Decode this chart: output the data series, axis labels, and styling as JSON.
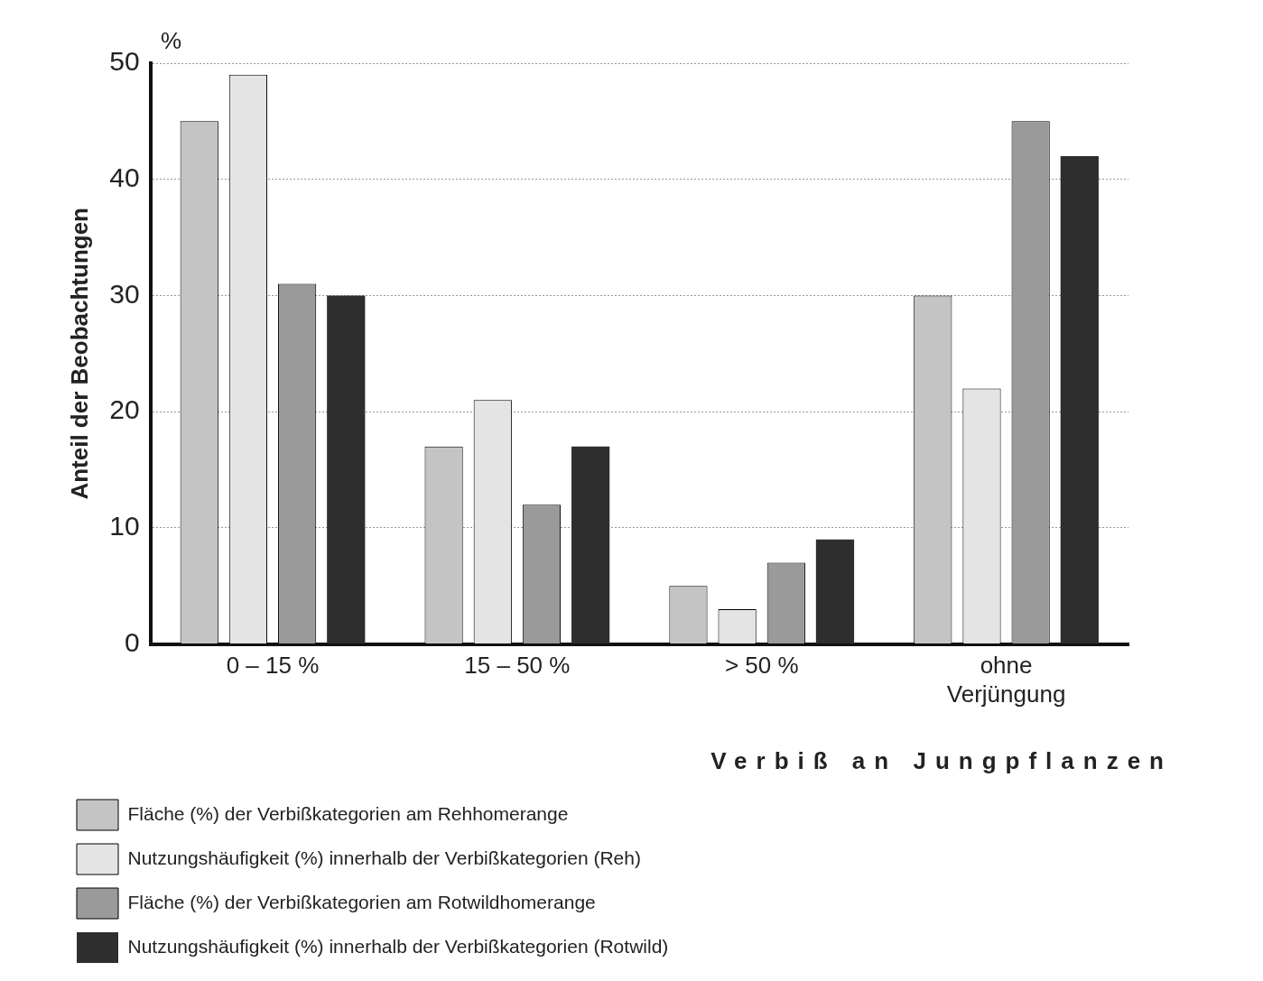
{
  "chart_data": {
    "type": "bar",
    "categories": [
      "0 – 15 %",
      "15 – 50 %",
      "> 50 %",
      "ohne Verjüngung"
    ],
    "series": [
      {
        "name": "Fläche (%) der Verbißkategorien am Rehhomerange",
        "color": "#c4c4c4",
        "values": [
          45,
          17,
          5,
          30
        ]
      },
      {
        "name": "Nutzungshäufigkeit (%) innerhalb der Verbißkategorien (Reh)",
        "color": "#e4e4e4",
        "values": [
          49,
          21,
          3,
          22
        ]
      },
      {
        "name": "Fläche (%) der Verbißkategorien am Rotwildhomerange",
        "color": "#9a9a9a",
        "values": [
          31,
          12,
          7,
          45
        ]
      },
      {
        "name": "Nutzungshäufigkeit (%) innerhalb der Verbißkategorien (Rotwild)",
        "color": "#2e2e2e",
        "values": [
          30,
          17,
          9,
          42
        ]
      }
    ],
    "ylabel": "Anteil der Beobachtungen",
    "xlabel": "Verbiß an Jungpflanzen",
    "annotations": [
      "%"
    ],
    "ylim": [
      0,
      50
    ],
    "yticks": [
      0,
      10,
      20,
      30,
      40,
      50
    ],
    "grid": "y",
    "legend": "bottom"
  }
}
